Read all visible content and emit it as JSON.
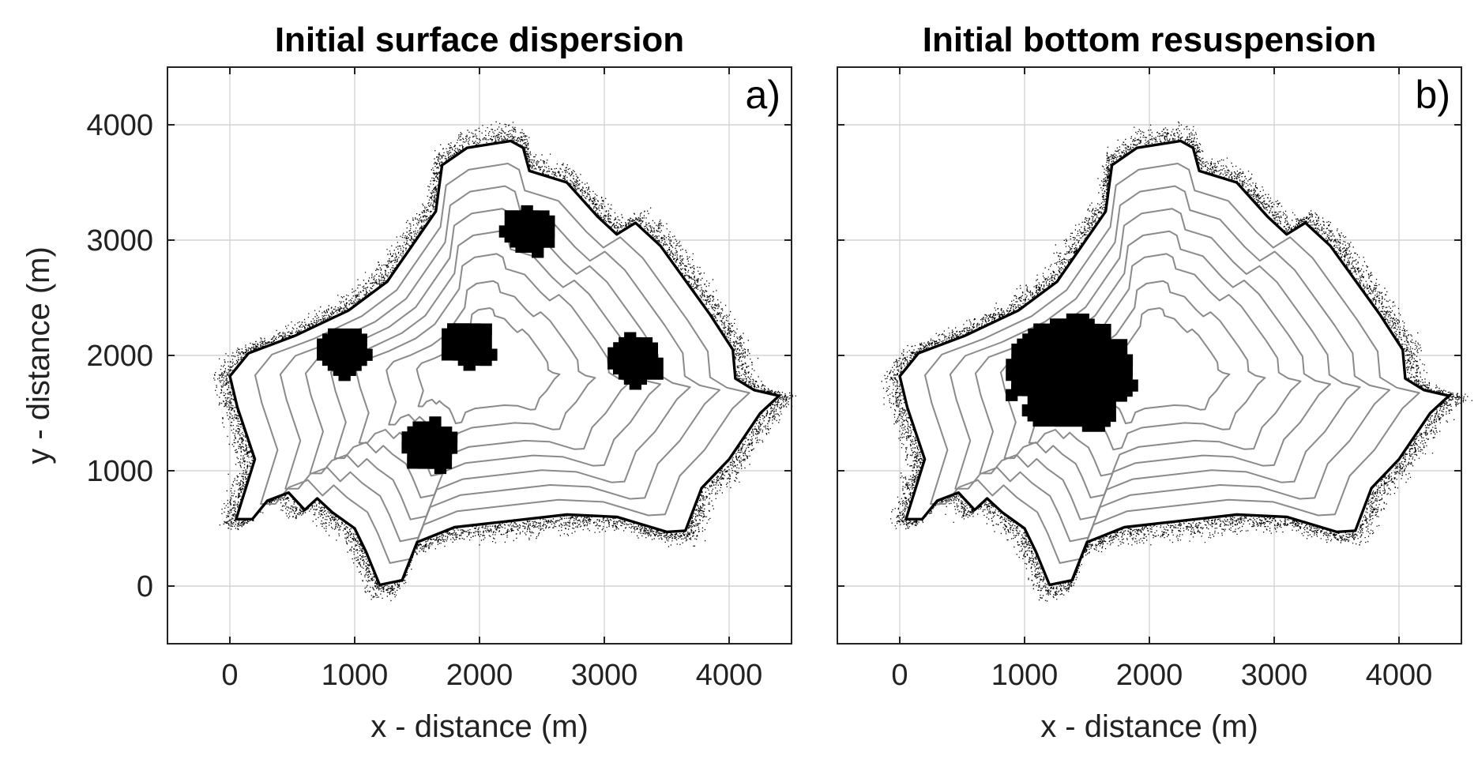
{
  "chart_data": [
    {
      "type": "scatter",
      "title": "Initial surface dispersion",
      "panel_label": "a)",
      "xlabel": "x - distance (m)",
      "ylabel": "y - distance (m)",
      "xlim": [
        -500,
        4500
      ],
      "ylim": [
        -500,
        4500
      ],
      "xticks": [
        0,
        1000,
        2000,
        3000,
        4000
      ],
      "yticks": [
        0,
        1000,
        2000,
        3000,
        4000
      ],
      "xtick_labels": [
        "0",
        "1000",
        "2000",
        "3000",
        "4000"
      ],
      "ytick_labels": [
        "0",
        "1000",
        "2000",
        "3000",
        "4000"
      ],
      "grid": true,
      "show_ytick_labels": true,
      "release_clusters": [
        {
          "x": 920,
          "y": 2040,
          "radius": 210
        },
        {
          "x": 1920,
          "y": 2100,
          "radius": 190
        },
        {
          "x": 2380,
          "y": 3080,
          "radius": 190
        },
        {
          "x": 3250,
          "y": 1950,
          "radius": 200
        },
        {
          "x": 1600,
          "y": 1220,
          "radius": 200
        }
      ]
    },
    {
      "type": "scatter",
      "title": "Initial bottom resuspension",
      "panel_label": "b)",
      "xlabel": "x - distance (m)",
      "ylabel": "",
      "xlim": [
        -500,
        4500
      ],
      "ylim": [
        -500,
        4500
      ],
      "xticks": [
        0,
        1000,
        2000,
        3000,
        4000
      ],
      "yticks": [
        0,
        1000,
        2000,
        3000,
        4000
      ],
      "xtick_labels": [
        "0",
        "1000",
        "2000",
        "3000",
        "4000"
      ],
      "ytick_labels": [],
      "grid": true,
      "show_ytick_labels": false,
      "release_clusters": [
        {
          "x": 1380,
          "y": 1850,
          "radius": 480
        }
      ]
    }
  ],
  "lake_outline_m": [
    [
      0,
      1820
    ],
    [
      150,
      2020
    ],
    [
      520,
      2170
    ],
    [
      950,
      2390
    ],
    [
      1260,
      2640
    ],
    [
      1650,
      3250
    ],
    [
      1700,
      3650
    ],
    [
      1900,
      3800
    ],
    [
      2250,
      3860
    ],
    [
      2350,
      3800
    ],
    [
      2400,
      3600
    ],
    [
      2700,
      3500
    ],
    [
      2950,
      3200
    ],
    [
      3100,
      3050
    ],
    [
      3250,
      3150
    ],
    [
      3450,
      2950
    ],
    [
      3850,
      2350
    ],
    [
      4030,
      2050
    ],
    [
      4050,
      1800
    ],
    [
      4200,
      1700
    ],
    [
      4400,
      1650
    ],
    [
      4250,
      1500
    ],
    [
      4000,
      1100
    ],
    [
      3780,
      850
    ],
    [
      3650,
      480
    ],
    [
      3500,
      470
    ],
    [
      3100,
      600
    ],
    [
      2700,
      620
    ],
    [
      1800,
      510
    ],
    [
      1500,
      380
    ],
    [
      1380,
      50
    ],
    [
      1200,
      10
    ],
    [
      1090,
      300
    ],
    [
      1000,
      500
    ],
    [
      820,
      640
    ],
    [
      700,
      760
    ],
    [
      600,
      660
    ],
    [
      470,
      810
    ],
    [
      300,
      740
    ],
    [
      180,
      580
    ],
    [
      50,
      580
    ],
    [
      200,
      1100
    ],
    [
      60,
      1550
    ]
  ],
  "colors": {
    "outline": "#000000",
    "contours": "#8a8a8a",
    "particles": "#000000",
    "grid": "#d4d4d4",
    "background": "#ffffff"
  }
}
